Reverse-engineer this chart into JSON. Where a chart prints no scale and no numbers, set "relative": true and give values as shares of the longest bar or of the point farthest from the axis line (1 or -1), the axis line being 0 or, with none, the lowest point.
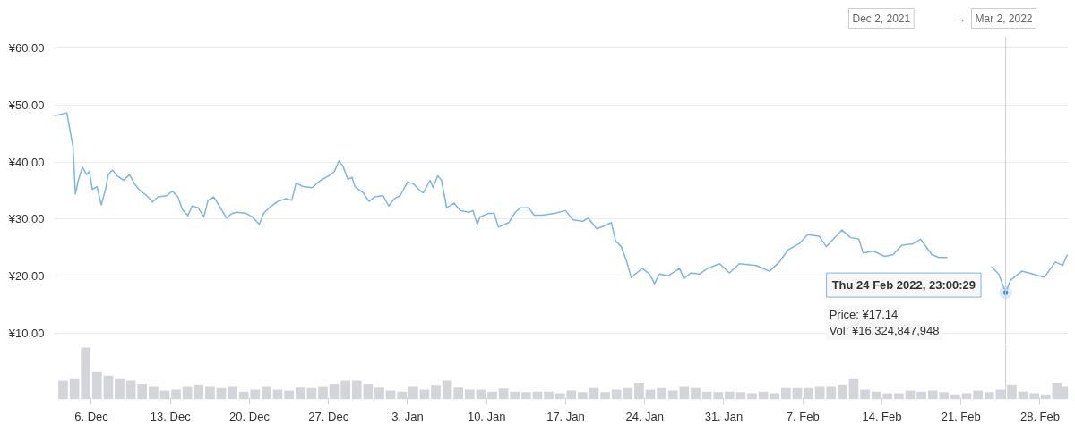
{
  "chart_data": [
    {
      "type": "line",
      "xlim": [
        "2021-12-02T17:00",
        "2022-03-02T12:00"
      ],
      "ylim": [
        8,
        62
      ],
      "yticks": [
        {
          "value": 10,
          "label": "¥10.00"
        },
        {
          "value": 20,
          "label": "¥20.00"
        },
        {
          "value": 30,
          "label": "¥30.00"
        },
        {
          "value": 40,
          "label": "¥40.00"
        },
        {
          "value": 50,
          "label": "¥50.00"
        },
        {
          "value": 60,
          "label": "¥60.00"
        }
      ],
      "grid": "y",
      "tick_labels": "y",
      "x": [
        "2021-12-02T18:00",
        "2021-12-03T20:00",
        "2021-12-04T02:00",
        "2021-12-04T09:00",
        "2021-12-04T14:00",
        "2021-12-04T20:00",
        "2021-12-05T05:00",
        "2021-12-05T14:00",
        "2021-12-05T20:00",
        "2021-12-06T02:00",
        "2021-12-06T12:00",
        "2021-12-06T21:00",
        "2021-12-07T06:00",
        "2021-12-07T12:00",
        "2021-12-07T21:00",
        "2021-12-08T06:00",
        "2021-12-08T21:00",
        "2021-12-09T09:00",
        "2021-12-09T21:00",
        "2021-12-10T09:00",
        "2021-12-10T22:00",
        "2021-12-11T10:00",
        "2021-12-11T22:00",
        "2021-12-12T16:00",
        "2021-12-13T04:00",
        "2021-12-13T16:00",
        "2021-12-14T01:00",
        "2021-12-14T13:00",
        "2021-12-14T22:00",
        "2021-12-15T11:00",
        "2021-12-15T23:00",
        "2021-12-16T08:00",
        "2021-12-16T20:00",
        "2021-12-17T08:00",
        "2021-12-17T23:00",
        "2021-12-18T11:00",
        "2021-12-18T23:00",
        "2021-12-19T17:00",
        "2021-12-20T06:00",
        "2021-12-20T21:00",
        "2021-12-21T06:00",
        "2021-12-21T18:00",
        "2021-12-22T12:00",
        "2021-12-23T06:00",
        "2021-12-23T18:00",
        "2021-12-24T03:00",
        "2021-12-24T18:00",
        "2021-12-25T13:00",
        "2021-12-26T07:00",
        "2021-12-27T01:00",
        "2021-12-27T13:00",
        "2021-12-27T22:00",
        "2021-12-28T07:00",
        "2021-12-28T17:00",
        "2021-12-29T02:00",
        "2021-12-29T08:00",
        "2021-12-30T02:00",
        "2021-12-30T14:00",
        "2021-12-31T02:00",
        "2021-12-31T20:00",
        "2022-01-01T08:00",
        "2022-01-01T20:00",
        "2022-01-02T08:00",
        "2022-01-03T00:00",
        "2022-01-03T12:00",
        "2022-01-04T00:00",
        "2022-01-04T09:00",
        "2022-01-05T00:00",
        "2022-01-05T06:00",
        "2022-01-05T16:00",
        "2022-01-06T00:00",
        "2022-01-06T11:00",
        "2022-01-07T03:00",
        "2022-01-07T16:00",
        "2022-01-08T10:00",
        "2022-01-08T19:00",
        "2022-01-09T04:00",
        "2022-01-09T10:00",
        "2022-01-10T04:00",
        "2022-01-10T16:00",
        "2022-01-11T01:00",
        "2022-01-11T23:00",
        "2022-01-12T11:00",
        "2022-01-12T23:00",
        "2022-01-13T17:00",
        "2022-01-14T05:00",
        "2022-01-14T23:00",
        "2022-01-16T00:00",
        "2022-01-17T00:00",
        "2022-01-17T15:00",
        "2022-01-18T12:00",
        "2022-01-19T00:00",
        "2022-01-19T18:00",
        "2022-01-20T12:00",
        "2022-01-21T01:00",
        "2022-01-21T10:00",
        "2022-01-21T22:00",
        "2022-01-22T10:00",
        "2022-01-22T19:00",
        "2022-01-23T07:00",
        "2022-01-23T19:00",
        "2022-01-24T10:00",
        "2022-01-24T21:00",
        "2022-01-25T07:00",
        "2022-01-26T02:00",
        "2022-01-27T02:00",
        "2022-01-27T11:00",
        "2022-01-28T02:00",
        "2022-01-28T20:00",
        "2022-01-29T14:00",
        "2022-01-30T15:00",
        "2022-01-31T12:00",
        "2022-02-01T09:00",
        "2022-02-02T21:00",
        "2022-02-04T01:00",
        "2022-02-04T22:00",
        "2022-02-05T16:00",
        "2022-02-06T16:00",
        "2022-02-07T10:00",
        "2022-02-08T11:00",
        "2022-02-09T02:00",
        "2022-02-09T20:00",
        "2022-02-10T11:00",
        "2022-02-11T05:00",
        "2022-02-11T23:00",
        "2022-02-12T08:00",
        "2022-02-13T06:00",
        "2022-02-14T06:00",
        "2022-02-15T00:00",
        "2022-02-15T18:00",
        "2022-02-16T18:00",
        "2022-02-17T10:00",
        "2022-02-18T10:00",
        "2022-02-19T01:00",
        "2022-02-19T19:00",
        "2022-02-21T00:00",
        "2022-02-23T17:00",
        "2022-02-24T08:00",
        "2022-02-24T23:00",
        "2022-02-25T09:00",
        "2022-02-26T09:00",
        "2022-02-27T09:00",
        "2022-02-28T09:00",
        "2022-02-28T21:00",
        "2022-03-01T09:00",
        "2022-03-02T00:00",
        "2022-03-02T10:00"
      ],
      "series": [
        {
          "color": "#7cb5ec",
          "values": [
            48.1,
            48.6,
            45.8,
            42.6,
            34.4,
            36.7,
            39.1,
            37.8,
            38.4,
            35.2,
            35.7,
            32.5,
            35.2,
            37.8,
            38.6,
            37.6,
            36.8,
            37.8,
            36.0,
            34.9,
            34.1,
            33.0,
            33.9,
            34.1,
            34.9,
            33.9,
            31.7,
            30.6,
            32.3,
            32.0,
            30.4,
            33.3,
            33.9,
            32.3,
            30.2,
            31.0,
            31.2,
            31.0,
            30.4,
            29.1,
            31.0,
            32.0,
            33.1,
            33.6,
            33.3,
            36.3,
            35.7,
            35.5,
            36.8,
            37.6,
            38.4,
            40.2,
            39.2,
            37.0,
            37.3,
            35.7,
            34.6,
            33.1,
            33.9,
            34.1,
            32.3,
            33.6,
            34.1,
            36.5,
            36.2,
            35.2,
            34.6,
            36.8,
            35.5,
            37.6,
            36.8,
            32.0,
            32.8,
            31.5,
            31.2,
            31.5,
            29.1,
            30.4,
            31.0,
            31.0,
            28.6,
            29.4,
            31.0,
            32.0,
            32.0,
            30.7,
            30.7,
            31.0,
            31.5,
            29.9,
            29.6,
            30.2,
            28.3,
            28.9,
            29.4,
            26.2,
            25.2,
            22.5,
            19.8,
            20.6,
            21.4,
            20.4,
            18.7,
            20.4,
            20.1,
            21.4,
            19.6,
            20.6,
            20.4,
            21.4,
            22.2,
            20.6,
            22.2,
            21.9,
            20.9,
            22.5,
            24.6,
            25.7,
            27.3,
            27.0,
            25.2,
            26.8,
            28.1,
            26.8,
            26.5,
            24.1,
            24.4,
            23.5,
            23.8,
            25.4,
            25.7,
            26.5,
            23.8,
            23.3,
            23.3,
            null,
            21.7,
            20.4,
            17.14,
            19.3,
            20.9,
            20.4,
            19.8,
            21.2,
            22.5,
            21.9,
            23.8
          ]
        }
      ],
      "ref_lines": [
        {
          "axis": "x",
          "value": "2022-02-24T23:00",
          "color": "#cccccc"
        }
      ],
      "annotations": [
        {
          "text": "Thu 24 Feb 2022, 23:00:29",
          "x": "2022-02-24T23:00",
          "y": 17.14
        },
        "Price: ¥17.14",
        "Vol: ¥16,324,847,948",
        "Dec 2, 2021",
        "→",
        "Mar 2, 2022"
      ]
    },
    {
      "type": "bar",
      "relative": true,
      "xlim": [
        "2021-12-02T17:00",
        "2022-03-02T12:00"
      ],
      "tick_labels": "x",
      "xticks": [
        {
          "value": "2021-12-06",
          "label": "6. Dec"
        },
        {
          "value": "2021-12-13",
          "label": "13. Dec"
        },
        {
          "value": "2021-12-20",
          "label": "20. Dec"
        },
        {
          "value": "2021-12-27",
          "label": "27. Dec"
        },
        {
          "value": "2022-01-03",
          "label": "3. Jan"
        },
        {
          "value": "2022-01-10",
          "label": "10. Jan"
        },
        {
          "value": "2022-01-17",
          "label": "17. Jan"
        },
        {
          "value": "2022-01-24",
          "label": "24. Jan"
        },
        {
          "value": "2022-01-31",
          "label": "31. Jan"
        },
        {
          "value": "2022-02-07",
          "label": "7. Feb"
        },
        {
          "value": "2022-02-14",
          "label": "14. Feb"
        },
        {
          "value": "2022-02-21",
          "label": "21. Feb"
        },
        {
          "value": "2022-02-28",
          "label": "28. Feb"
        }
      ],
      "x": [
        "2021-12-03T12:00",
        "2021-12-04T12:00",
        "2021-12-05T12:00",
        "2021-12-06T12:00",
        "2021-12-07T12:00",
        "2021-12-08T12:00",
        "2021-12-09T12:00",
        "2021-12-10T12:00",
        "2021-12-11T12:00",
        "2021-12-12T12:00",
        "2021-12-13T12:00",
        "2021-12-14T12:00",
        "2021-12-15T12:00",
        "2021-12-16T12:00",
        "2021-12-17T12:00",
        "2021-12-18T12:00",
        "2021-12-19T12:00",
        "2021-12-20T12:00",
        "2021-12-21T12:00",
        "2021-12-22T12:00",
        "2021-12-23T12:00",
        "2021-12-24T12:00",
        "2021-12-25T12:00",
        "2021-12-26T12:00",
        "2021-12-27T12:00",
        "2021-12-28T12:00",
        "2021-12-29T12:00",
        "2021-12-30T12:00",
        "2021-12-31T12:00",
        "2022-01-01T12:00",
        "2022-01-02T12:00",
        "2022-01-03T12:00",
        "2022-01-04T12:00",
        "2022-01-05T12:00",
        "2022-01-06T12:00",
        "2022-01-07T12:00",
        "2022-01-08T12:00",
        "2022-01-09T12:00",
        "2022-01-10T12:00",
        "2022-01-11T12:00",
        "2022-01-12T12:00",
        "2022-01-13T12:00",
        "2022-01-14T12:00",
        "2022-01-15T12:00",
        "2022-01-16T12:00",
        "2022-01-17T12:00",
        "2022-01-18T12:00",
        "2022-01-19T12:00",
        "2022-01-20T12:00",
        "2022-01-21T12:00",
        "2022-01-22T12:00",
        "2022-01-23T12:00",
        "2022-01-24T12:00",
        "2022-01-25T12:00",
        "2022-01-26T12:00",
        "2022-01-27T12:00",
        "2022-01-28T12:00",
        "2022-01-29T12:00",
        "2022-01-30T12:00",
        "2022-01-31T12:00",
        "2022-02-01T12:00",
        "2022-02-02T12:00",
        "2022-02-03T12:00",
        "2022-02-04T12:00",
        "2022-02-05T12:00",
        "2022-02-06T12:00",
        "2022-02-07T12:00",
        "2022-02-08T12:00",
        "2022-02-09T12:00",
        "2022-02-10T12:00",
        "2022-02-11T12:00",
        "2022-02-12T12:00",
        "2022-02-13T12:00",
        "2022-02-14T12:00",
        "2022-02-15T12:00",
        "2022-02-16T12:00",
        "2022-02-17T12:00",
        "2022-02-18T12:00",
        "2022-02-19T12:00",
        "2022-02-20T12:00",
        "2022-02-21T12:00",
        "2022-02-22T12:00",
        "2022-02-23T12:00",
        "2022-02-24T12:00",
        "2022-02-25T12:00",
        "2022-02-26T12:00",
        "2022-02-27T12:00",
        "2022-02-28T12:00",
        "2022-03-01T12:00",
        "2022-03-02T06:00"
      ],
      "series": [
        {
          "color": "#d3d5da",
          "values": [
            0.36,
            0.39,
            1,
            0.53,
            0.46,
            0.39,
            0.36,
            0.3,
            0.26,
            0.17,
            0.19,
            0.26,
            0.29,
            0.26,
            0.22,
            0.26,
            0.15,
            0.19,
            0.26,
            0.19,
            0.17,
            0.23,
            0.22,
            0.26,
            0.3,
            0.36,
            0.36,
            0.3,
            0.23,
            0.17,
            0.15,
            0.26,
            0.19,
            0.28,
            0.36,
            0.23,
            0.19,
            0.19,
            0.15,
            0.21,
            0.15,
            0.14,
            0.15,
            0.15,
            0.12,
            0.17,
            0.14,
            0.22,
            0.14,
            0.19,
            0.22,
            0.32,
            0.19,
            0.22,
            0.17,
            0.26,
            0.22,
            0.15,
            0.14,
            0.15,
            0.14,
            0.12,
            0.15,
            0.12,
            0.22,
            0.22,
            0.22,
            0.26,
            0.26,
            0.29,
            0.39,
            0.19,
            0.15,
            0.12,
            0.12,
            0.17,
            0.15,
            0.17,
            0.14,
            0.1,
            0.12,
            0.17,
            0.14,
            0.19,
            0.29,
            0.15,
            0.12,
            0.1,
            0.32,
            0.26
          ]
        }
      ],
      "ref_lines": [
        {
          "axis": "x",
          "value": "2022-02-24T23:00",
          "color": "#cccccc"
        }
      ]
    }
  ]
}
